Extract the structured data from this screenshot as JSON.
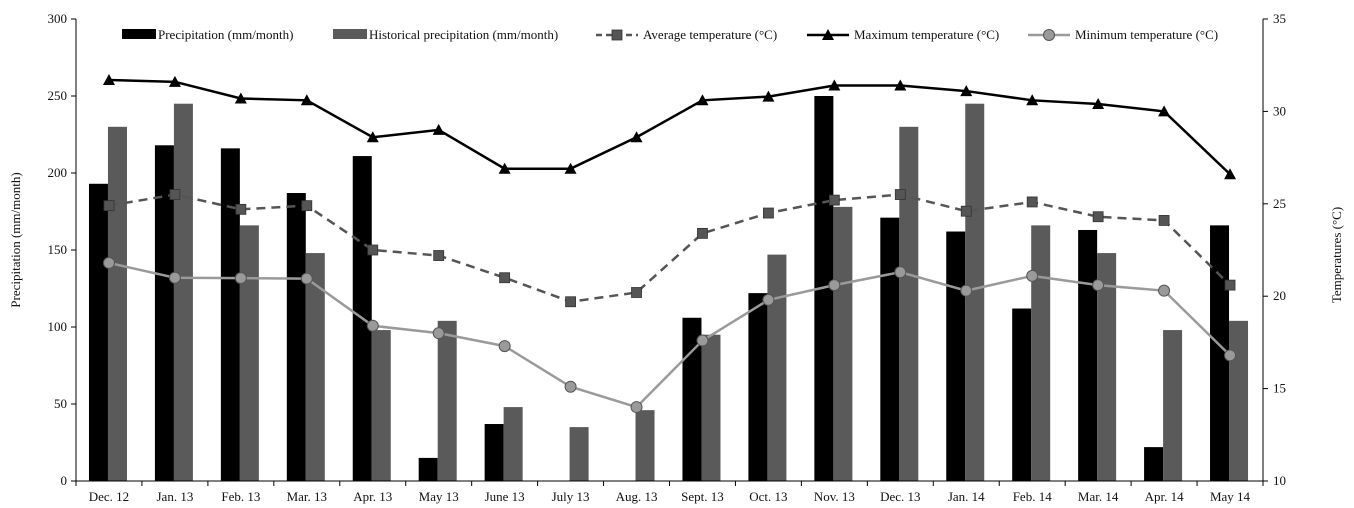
{
  "chart_data": {
    "type": "bar",
    "categories": [
      "Dec. 12",
      "Jan. 13",
      "Feb. 13",
      "Mar. 13",
      "Apr. 13",
      "May 13",
      "June 13",
      "July 13",
      "Aug. 13",
      "Sept. 13",
      "Oct. 13",
      "Nov. 13",
      "Dec. 13",
      "Jan. 14",
      "Feb. 14",
      "Mar. 14",
      "Apr. 14",
      "May 14"
    ],
    "ylabel": "Precipitation (mm/month)",
    "y2label": "Temperatures (°C)",
    "ylim": [
      0,
      300
    ],
    "y2lim": [
      10,
      35
    ],
    "yticks": [
      "0",
      "50",
      "100",
      "150",
      "200",
      "250",
      "300"
    ],
    "y2ticks": [
      "10",
      "15",
      "20",
      "25",
      "30",
      "35"
    ],
    "grid": false,
    "legend_position": "top",
    "series": [
      {
        "name": "Precipitation (mm/month)",
        "kind": "bar",
        "color": "#000000",
        "values": [
          193,
          218,
          216,
          187,
          211,
          15,
          37,
          0,
          0,
          106,
          122,
          250,
          171,
          162,
          112,
          163,
          22,
          166
        ]
      },
      {
        "name": "Historical precipitation (mm/month)",
        "kind": "bar",
        "color": "#5a5a5a",
        "values": [
          230,
          245,
          166,
          148,
          98,
          104,
          48,
          35,
          46,
          95,
          147,
          178,
          230,
          245,
          166,
          148,
          98,
          104
        ]
      },
      {
        "name": "Average temperature (°C)",
        "kind": "line",
        "axis": "right",
        "color": "#555555",
        "dash": true,
        "marker": "square",
        "values": [
          24.9,
          25.5,
          24.7,
          24.9,
          22.5,
          22.2,
          21.0,
          19.7,
          20.2,
          23.4,
          24.5,
          25.2,
          25.5,
          24.6,
          25.1,
          24.3,
          24.1,
          20.6
        ]
      },
      {
        "name": "Maximum temperature (°C)",
        "kind": "line",
        "axis": "right",
        "color": "#000000",
        "dash": false,
        "marker": "triangle",
        "values": [
          31.7,
          31.6,
          30.7,
          30.6,
          28.6,
          29.0,
          26.9,
          26.9,
          28.6,
          30.6,
          30.8,
          31.4,
          31.4,
          31.1,
          30.6,
          30.4,
          30.0,
          26.6
        ]
      },
      {
        "name": "Minimum temperature (°C)",
        "kind": "line",
        "axis": "right",
        "color": "#9a9a9a",
        "dash": false,
        "marker": "circle",
        "values": [
          21.8,
          21.0,
          20.98,
          20.95,
          18.4,
          18.0,
          17.3,
          15.1,
          14.0,
          17.6,
          19.8,
          20.6,
          21.3,
          20.3,
          21.1,
          20.6,
          20.3,
          16.8
        ]
      }
    ]
  }
}
